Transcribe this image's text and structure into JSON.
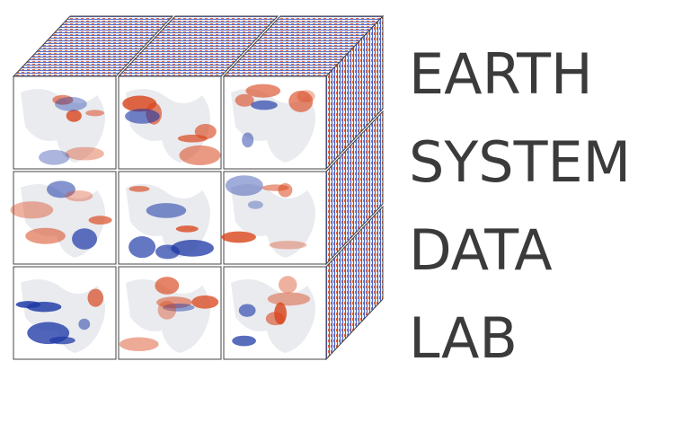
{
  "logo": {
    "title_lines": [
      "EARTH",
      "SYSTEM",
      "DATA",
      "LAB"
    ],
    "icon": "data-cube-icon",
    "cube_grid": {
      "rows": 3,
      "cols": 3
    },
    "palette": {
      "blue": "#1f3aa6",
      "orange": "#d9481f",
      "neutral": "#e9ebef",
      "edge": "#444444"
    }
  }
}
